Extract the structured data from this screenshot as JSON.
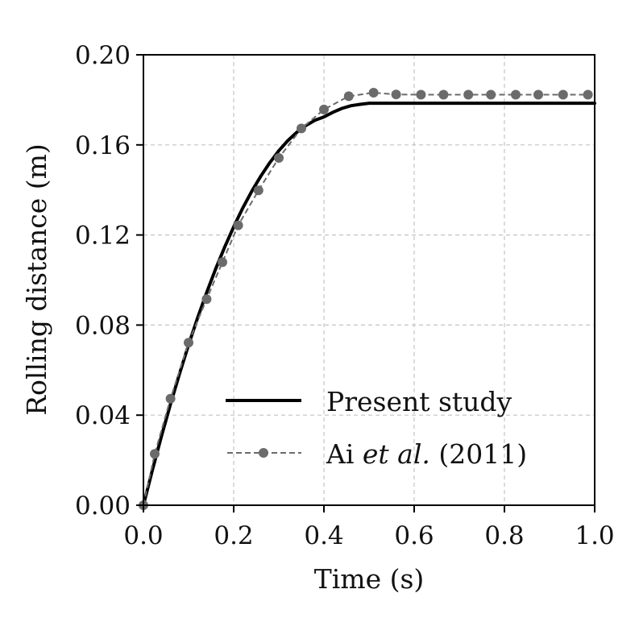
{
  "chart_data": {
    "type": "line",
    "title": "",
    "xlabel": "Time (s)",
    "ylabel": "Rolling distance (m)",
    "xlim": [
      0.0,
      1.0
    ],
    "ylim": [
      0.0,
      0.2
    ],
    "xticks": [
      0.0,
      0.2,
      0.4,
      0.6,
      0.8,
      1.0
    ],
    "xtick_labels": [
      "0.0",
      "0.2",
      "0.4",
      "0.6",
      "0.8",
      "1.0"
    ],
    "yticks": [
      0.0,
      0.04,
      0.08,
      0.12,
      0.16,
      0.2
    ],
    "ytick_labels": [
      "0.00",
      "0.04",
      "0.08",
      "0.12",
      "0.16",
      "0.20"
    ],
    "grid": true,
    "legend_position": "lower-right",
    "series": [
      {
        "name": "Present study",
        "style": "solid",
        "color": "#000000",
        "x": [
          0.0,
          0.02,
          0.04,
          0.06,
          0.08,
          0.1,
          0.12,
          0.14,
          0.16,
          0.18,
          0.2,
          0.22,
          0.24,
          0.26,
          0.28,
          0.3,
          0.32,
          0.34,
          0.36,
          0.38,
          0.4,
          0.42,
          0.44,
          0.46,
          0.48,
          0.5,
          0.6,
          0.7,
          0.8,
          0.9,
          1.0
        ],
        "y": [
          0.0,
          0.0157,
          0.0307,
          0.0449,
          0.0584,
          0.0712,
          0.0832,
          0.0944,
          0.1049,
          0.1146,
          0.1236,
          0.1319,
          0.1394,
          0.1461,
          0.1521,
          0.1574,
          0.1619,
          0.1656,
          0.1686,
          0.1709,
          0.1724,
          0.1745,
          0.1762,
          0.1774,
          0.178,
          0.1785,
          0.1785,
          0.1785,
          0.1785,
          0.1785,
          0.1785
        ]
      },
      {
        "name": "Ai et al. (2011)",
        "label_parts": [
          "Ai ",
          "et al.",
          " (2011)"
        ],
        "style": "dashed-markers",
        "color": "#6b6b6b",
        "x": [
          0.0,
          0.025,
          0.06,
          0.1,
          0.14,
          0.175,
          0.21,
          0.255,
          0.3,
          0.35,
          0.4,
          0.455,
          0.51,
          0.56,
          0.615,
          0.665,
          0.72,
          0.77,
          0.825,
          0.875,
          0.93,
          0.985
        ],
        "y": [
          0.0,
          0.0228,
          0.0473,
          0.0722,
          0.0915,
          0.1079,
          0.1243,
          0.1398,
          0.1542,
          0.1673,
          0.1757,
          0.1816,
          0.1832,
          0.1824,
          0.1823,
          0.1823,
          0.1823,
          0.1823,
          0.1823,
          0.1823,
          0.1823,
          0.1823
        ]
      }
    ]
  }
}
